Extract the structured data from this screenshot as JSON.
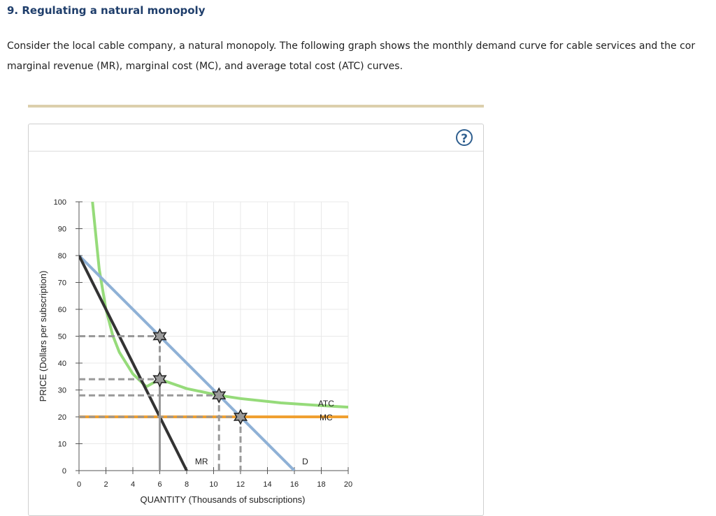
{
  "header": {
    "title": "9. Regulating a natural monopoly",
    "intro_line1": "Consider the local cable company, a natural monopoly. The following graph shows the monthly demand curve for cable services and the cor",
    "intro_line2": "marginal revenue (MR), marginal cost (MC), and average total cost (ATC) curves."
  },
  "help_button": {
    "label": "?"
  },
  "colors": {
    "demand": "#8fb1d6",
    "mr": "#333333",
    "atc": "#96db7a",
    "mc": "#f0a030",
    "guide": "#999999",
    "marker_fill": "#9a9a9a",
    "marker_stroke": "#222222"
  },
  "chart_data": {
    "type": "line",
    "title": "",
    "xlabel": "QUANTITY (Thousands of subscriptions)",
    "ylabel": "PRICE (Dollars per subscription)",
    "xlim": [
      0,
      20
    ],
    "ylim": [
      0,
      100
    ],
    "x_ticks": [
      0,
      2,
      4,
      6,
      8,
      10,
      12,
      14,
      16,
      18,
      20
    ],
    "y_ticks": [
      0,
      10,
      20,
      30,
      40,
      50,
      60,
      70,
      80,
      90,
      100
    ],
    "grid": true,
    "series": [
      {
        "name": "D",
        "points": [
          [
            0,
            80
          ],
          [
            16,
            0
          ]
        ]
      },
      {
        "name": "MR",
        "points": [
          [
            0,
            80
          ],
          [
            8,
            0
          ]
        ]
      },
      {
        "name": "ATC",
        "points": [
          [
            1,
            100
          ],
          [
            1.5,
            75
          ],
          [
            2,
            60
          ],
          [
            2.5,
            50.4
          ],
          [
            3,
            44
          ],
          [
            4,
            36
          ],
          [
            5,
            31.2
          ],
          [
            6,
            34
          ],
          [
            8,
            30.5
          ],
          [
            10.4,
            28
          ],
          [
            12,
            26.8
          ],
          [
            15,
            25.2
          ],
          [
            18,
            24.2
          ],
          [
            20,
            23.6
          ]
        ]
      },
      {
        "name": "MC",
        "points": [
          [
            0,
            20
          ],
          [
            20,
            20
          ]
        ]
      }
    ],
    "markers": [
      {
        "x": 6,
        "y": 50
      },
      {
        "x": 6,
        "y": 34
      },
      {
        "x": 10.4,
        "y": 28
      },
      {
        "x": 12,
        "y": 20
      }
    ],
    "guides": [
      {
        "x": 6,
        "y": 50
      },
      {
        "x": 6,
        "y": 34
      },
      {
        "x": 10.4,
        "y": 28
      },
      {
        "x": 12,
        "y": 20
      }
    ]
  }
}
